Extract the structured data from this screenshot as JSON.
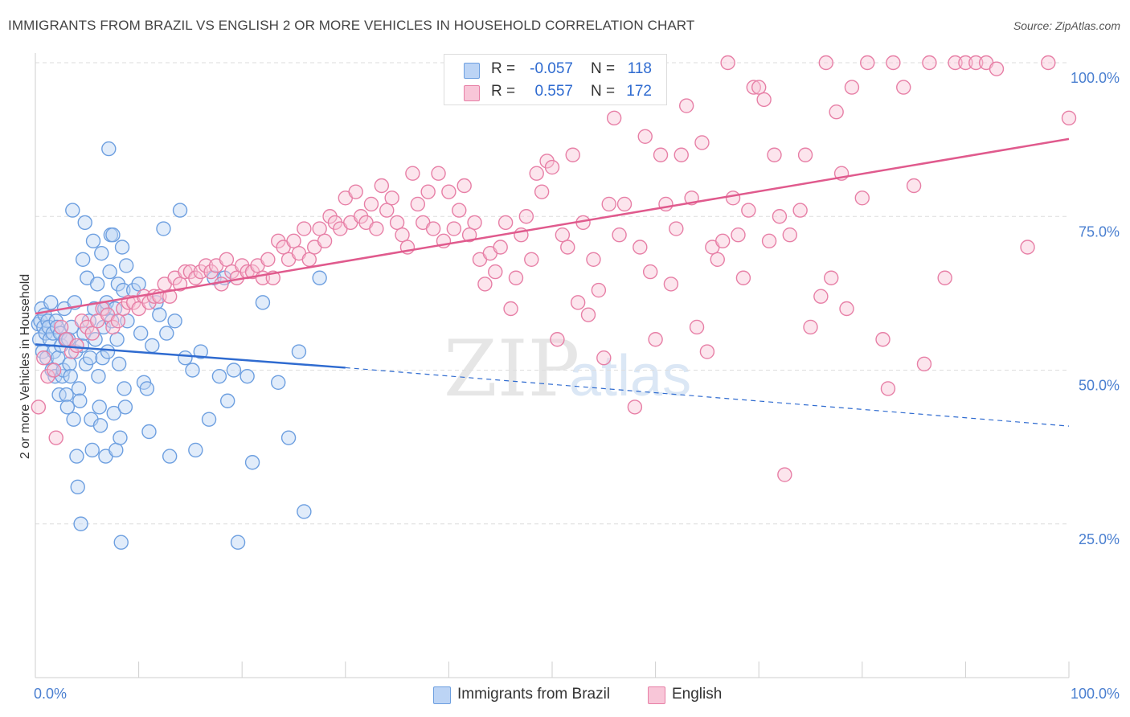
{
  "title": "IMMIGRANTS FROM BRAZIL VS ENGLISH 2 OR MORE VEHICLES IN HOUSEHOLD CORRELATION CHART",
  "source": "Source: ZipAtlas.com",
  "watermark": {
    "zip": "ZIP",
    "atlas": "atlas"
  },
  "stats": [
    {
      "r_label": "R =",
      "r_value": "-0.057",
      "n_label": "N =",
      "n_value": "118",
      "color": "#6d9fe0",
      "fill": "#bcd4f5"
    },
    {
      "r_label": "R =",
      "r_value": "0.557",
      "n_label": "N =",
      "n_value": "172",
      "color": "#e77fa6",
      "fill": "#f8c6d8"
    }
  ],
  "chart_data": {
    "type": "scatter",
    "title": "IMMIGRANTS FROM BRAZIL VS ENGLISH 2 OR MORE VEHICLES IN HOUSEHOLD CORRELATION CHART",
    "xlabel": "",
    "ylabel": "2 or more Vehicles in Household",
    "xlim": [
      0,
      100
    ],
    "ylim": [
      0,
      100
    ],
    "x_tick_labels": [
      {
        "value": 0,
        "label": "0.0%"
      },
      {
        "value": 100,
        "label": "100.0%"
      }
    ],
    "y_tick_labels": [
      {
        "value": 25,
        "label": "25.0%"
      },
      {
        "value": 50,
        "label": "50.0%"
      },
      {
        "value": 75,
        "label": "75.0%"
      },
      {
        "value": 100,
        "label": "100.0%"
      }
    ],
    "grid": true,
    "legend_position": "bottom",
    "series": [
      {
        "name": "Immigrants from Brazil",
        "color": "#6d9fe0",
        "fill": "#bcd4f5",
        "trend": {
          "x0": 0,
          "y0": 54.2,
          "x1": 30,
          "y1": 50.4,
          "dash_to_x": 100,
          "dash_to_y": 40.9
        },
        "points": [
          [
            0.3,
            57.5
          ],
          [
            0.4,
            55
          ],
          [
            0.5,
            58
          ],
          [
            0.6,
            60
          ],
          [
            0.7,
            53
          ],
          [
            0.8,
            57
          ],
          [
            0.9,
            59
          ],
          [
            1.0,
            56
          ],
          [
            1.1,
            52
          ],
          [
            1.2,
            58
          ],
          [
            1.3,
            57
          ],
          [
            1.4,
            55
          ],
          [
            1.5,
            61
          ],
          [
            1.6,
            50
          ],
          [
            1.7,
            56
          ],
          [
            1.8,
            53
          ],
          [
            1.9,
            49
          ],
          [
            2.0,
            58
          ],
          [
            2.1,
            57
          ],
          [
            2.2,
            52
          ],
          [
            2.3,
            46
          ],
          [
            2.4,
            56
          ],
          [
            2.5,
            54
          ],
          [
            2.6,
            49
          ],
          [
            2.7,
            50
          ],
          [
            2.8,
            60
          ],
          [
            2.9,
            55
          ],
          [
            3.0,
            46
          ],
          [
            3.1,
            44
          ],
          [
            3.2,
            55
          ],
          [
            3.3,
            51
          ],
          [
            3.4,
            49
          ],
          [
            3.5,
            57
          ],
          [
            3.6,
            76
          ],
          [
            3.7,
            42
          ],
          [
            3.8,
            61
          ],
          [
            3.9,
            53
          ],
          [
            4.0,
            36
          ],
          [
            4.1,
            31
          ],
          [
            4.2,
            47
          ],
          [
            4.3,
            45
          ],
          [
            4.4,
            25
          ],
          [
            4.5,
            54
          ],
          [
            4.6,
            68
          ],
          [
            4.7,
            56
          ],
          [
            4.8,
            74
          ],
          [
            4.9,
            51
          ],
          [
            5.0,
            65
          ],
          [
            5.2,
            58
          ],
          [
            5.3,
            52
          ],
          [
            5.4,
            42
          ],
          [
            5.5,
            37
          ],
          [
            5.6,
            71
          ],
          [
            5.7,
            60
          ],
          [
            5.8,
            55
          ],
          [
            6.0,
            64
          ],
          [
            6.1,
            49
          ],
          [
            6.2,
            44
          ],
          [
            6.3,
            41
          ],
          [
            6.4,
            69
          ],
          [
            6.5,
            52
          ],
          [
            6.6,
            57
          ],
          [
            6.7,
            60
          ],
          [
            6.8,
            36
          ],
          [
            6.9,
            61
          ],
          [
            7.0,
            53
          ],
          [
            7.1,
            86
          ],
          [
            7.2,
            66
          ],
          [
            7.3,
            72
          ],
          [
            7.4,
            58
          ],
          [
            7.5,
            72
          ],
          [
            7.6,
            43
          ],
          [
            7.7,
            60
          ],
          [
            7.8,
            37
          ],
          [
            7.9,
            55
          ],
          [
            8.0,
            64
          ],
          [
            8.1,
            51
          ],
          [
            8.2,
            39
          ],
          [
            8.3,
            22
          ],
          [
            8.4,
            70
          ],
          [
            8.5,
            63
          ],
          [
            8.6,
            47
          ],
          [
            8.7,
            44
          ],
          [
            8.8,
            67
          ],
          [
            8.9,
            58
          ],
          [
            9.5,
            63
          ],
          [
            10.0,
            64
          ],
          [
            10.2,
            56
          ],
          [
            10.5,
            48
          ],
          [
            10.8,
            47
          ],
          [
            11.0,
            40
          ],
          [
            11.3,
            54
          ],
          [
            11.7,
            61
          ],
          [
            12.0,
            59
          ],
          [
            12.4,
            73
          ],
          [
            12.7,
            56
          ],
          [
            13.0,
            36
          ],
          [
            13.5,
            58
          ],
          [
            14.0,
            76
          ],
          [
            14.5,
            52
          ],
          [
            15.2,
            50
          ],
          [
            15.5,
            37
          ],
          [
            16.0,
            53
          ],
          [
            16.8,
            42
          ],
          [
            17.3,
            65
          ],
          [
            17.8,
            49
          ],
          [
            18.3,
            65
          ],
          [
            18.6,
            45
          ],
          [
            19.2,
            50
          ],
          [
            19.6,
            22
          ],
          [
            20.5,
            49
          ],
          [
            21.0,
            35
          ],
          [
            22.0,
            61
          ],
          [
            23.5,
            48
          ],
          [
            24.5,
            39
          ],
          [
            25.5,
            53
          ],
          [
            26.0,
            27
          ],
          [
            27.5,
            65
          ]
        ]
      },
      {
        "name": "English",
        "color": "#e77fa6",
        "fill": "#f8c6d8",
        "trend": {
          "x0": 0,
          "y0": 59.2,
          "x1": 100,
          "y1": 87.6
        },
        "points": [
          [
            0.3,
            44
          ],
          [
            0.8,
            52
          ],
          [
            1.2,
            49
          ],
          [
            1.8,
            50
          ],
          [
            2.0,
            39
          ],
          [
            2.5,
            57
          ],
          [
            3.0,
            55
          ],
          [
            3.5,
            53
          ],
          [
            4.0,
            54
          ],
          [
            4.5,
            58
          ],
          [
            5.0,
            57
          ],
          [
            5.5,
            56
          ],
          [
            6.0,
            58
          ],
          [
            6.5,
            60
          ],
          [
            7.0,
            59
          ],
          [
            7.5,
            57
          ],
          [
            8.0,
            58
          ],
          [
            8.5,
            60
          ],
          [
            9.0,
            61
          ],
          [
            9.5,
            61
          ],
          [
            10.0,
            60
          ],
          [
            10.5,
            62
          ],
          [
            11.0,
            61
          ],
          [
            11.5,
            62
          ],
          [
            12.0,
            62
          ],
          [
            12.5,
            64
          ],
          [
            13.0,
            62
          ],
          [
            13.5,
            65
          ],
          [
            14.0,
            64
          ],
          [
            14.5,
            66
          ],
          [
            15.0,
            66
          ],
          [
            15.5,
            65
          ],
          [
            16.0,
            66
          ],
          [
            16.5,
            67
          ],
          [
            17.0,
            66
          ],
          [
            17.5,
            67
          ],
          [
            18.0,
            64
          ],
          [
            18.5,
            68
          ],
          [
            19.0,
            66
          ],
          [
            19.5,
            65
          ],
          [
            20.0,
            67
          ],
          [
            20.5,
            66
          ],
          [
            21.0,
            66
          ],
          [
            21.5,
            67
          ],
          [
            22.0,
            65
          ],
          [
            22.5,
            68
          ],
          [
            23.0,
            65
          ],
          [
            23.5,
            71
          ],
          [
            24.0,
            70
          ],
          [
            24.5,
            68
          ],
          [
            25.0,
            71
          ],
          [
            25.5,
            69
          ],
          [
            26.0,
            73
          ],
          [
            26.5,
            68
          ],
          [
            27.0,
            70
          ],
          [
            27.5,
            73
          ],
          [
            28.0,
            71
          ],
          [
            28.5,
            75
          ],
          [
            29.0,
            74
          ],
          [
            29.5,
            73
          ],
          [
            30.0,
            78
          ],
          [
            30.5,
            74
          ],
          [
            31.0,
            79
          ],
          [
            31.5,
            75
          ],
          [
            32.0,
            74
          ],
          [
            32.5,
            77
          ],
          [
            33.0,
            73
          ],
          [
            33.5,
            80
          ],
          [
            34.0,
            76
          ],
          [
            34.5,
            78
          ],
          [
            35.0,
            74
          ],
          [
            35.5,
            72
          ],
          [
            36.0,
            70
          ],
          [
            36.5,
            82
          ],
          [
            37.0,
            77
          ],
          [
            37.5,
            74
          ],
          [
            38.0,
            79
          ],
          [
            38.5,
            73
          ],
          [
            39.0,
            82
          ],
          [
            39.5,
            71
          ],
          [
            40.0,
            79
          ],
          [
            40.5,
            73
          ],
          [
            41.0,
            76
          ],
          [
            41.5,
            80
          ],
          [
            42.0,
            72
          ],
          [
            42.5,
            74
          ],
          [
            43.0,
            68
          ],
          [
            43.5,
            64
          ],
          [
            44.0,
            69
          ],
          [
            44.5,
            66
          ],
          [
            45.0,
            70
          ],
          [
            45.5,
            74
          ],
          [
            46.0,
            60
          ],
          [
            46.5,
            65
          ],
          [
            47.0,
            72
          ],
          [
            47.5,
            75
          ],
          [
            48.0,
            68
          ],
          [
            48.5,
            82
          ],
          [
            49.0,
            79
          ],
          [
            49.5,
            84
          ],
          [
            50.0,
            83
          ],
          [
            50.5,
            55
          ],
          [
            51.0,
            72
          ],
          [
            51.5,
            70
          ],
          [
            52.0,
            85
          ],
          [
            52.5,
            61
          ],
          [
            53.0,
            74
          ],
          [
            53.5,
            59
          ],
          [
            54.0,
            68
          ],
          [
            54.5,
            63
          ],
          [
            55.0,
            52
          ],
          [
            55.5,
            77
          ],
          [
            56.0,
            91
          ],
          [
            56.5,
            72
          ],
          [
            57.0,
            77
          ],
          [
            57.5,
            95
          ],
          [
            58.0,
            44
          ],
          [
            58.5,
            70
          ],
          [
            59.0,
            88
          ],
          [
            59.5,
            66
          ],
          [
            60.0,
            55
          ],
          [
            60.5,
            85
          ],
          [
            61.0,
            77
          ],
          [
            61.5,
            64
          ],
          [
            62.0,
            73
          ],
          [
            62.5,
            85
          ],
          [
            63.0,
            93
          ],
          [
            63.5,
            78
          ],
          [
            64.0,
            57
          ],
          [
            64.5,
            87
          ],
          [
            65.0,
            53
          ],
          [
            65.5,
            70
          ],
          [
            66.0,
            68
          ],
          [
            66.5,
            71
          ],
          [
            67.0,
            100
          ],
          [
            67.5,
            78
          ],
          [
            68.0,
            72
          ],
          [
            68.5,
            65
          ],
          [
            69.0,
            76
          ],
          [
            69.5,
            96
          ],
          [
            70.0,
            96
          ],
          [
            70.5,
            94
          ],
          [
            71.0,
            71
          ],
          [
            71.5,
            85
          ],
          [
            72.0,
            75
          ],
          [
            72.5,
            33
          ],
          [
            73.0,
            72
          ],
          [
            74.0,
            76
          ],
          [
            74.5,
            85
          ],
          [
            75.0,
            57
          ],
          [
            76.0,
            62
          ],
          [
            76.5,
            100
          ],
          [
            77.0,
            65
          ],
          [
            77.5,
            92
          ],
          [
            78.0,
            82
          ],
          [
            78.5,
            60
          ],
          [
            79.0,
            96
          ],
          [
            80.0,
            78
          ],
          [
            80.5,
            100
          ],
          [
            82.0,
            55
          ],
          [
            82.5,
            47
          ],
          [
            83.0,
            100
          ],
          [
            84.0,
            96
          ],
          [
            85.0,
            80
          ],
          [
            86.0,
            51
          ],
          [
            86.5,
            100
          ],
          [
            88.0,
            65
          ],
          [
            89.0,
            100
          ],
          [
            90.0,
            100
          ],
          [
            91.0,
            100
          ],
          [
            92.0,
            100
          ],
          [
            93.0,
            99
          ],
          [
            96.0,
            70
          ],
          [
            98.0,
            100
          ],
          [
            100.0,
            91
          ]
        ]
      }
    ]
  }
}
